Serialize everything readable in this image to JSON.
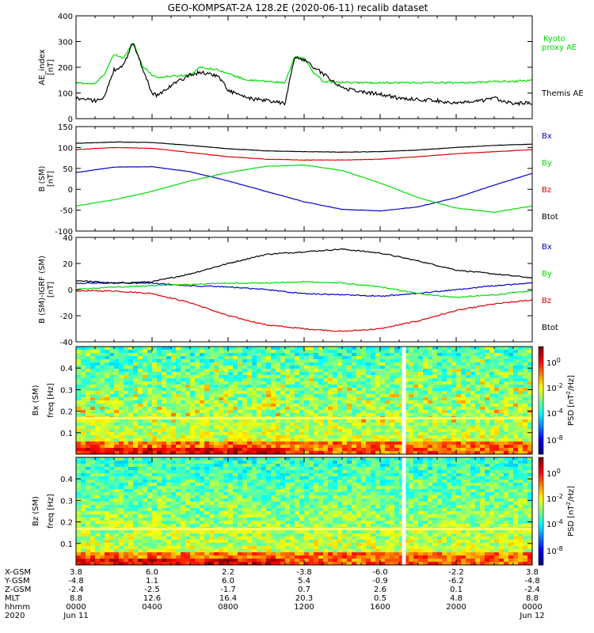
{
  "title": "GEO-KOMPSAT-2A 128.2E (2020-06-11) recalib dataset",
  "colors": {
    "black": "#000000",
    "green": "#00dd00",
    "blue": "#0000cc",
    "red": "#dd0000"
  },
  "chart_data": [
    {
      "type": "line",
      "panel": "ae",
      "ylabel": "AE_index",
      "yunit": "[nT]",
      "ylim": [
        0,
        400
      ],
      "yticks": [
        "0",
        "100",
        "200",
        "300",
        "400"
      ],
      "x_hours": [
        0,
        1,
        1.5,
        2,
        2.5,
        3,
        3.5,
        4,
        4.3,
        5,
        6,
        6.5,
        7,
        7.5,
        8,
        9,
        10,
        11,
        11.5,
        12,
        12.5,
        13,
        14,
        15,
        16,
        17,
        18,
        19,
        20,
        21,
        22,
        23,
        24
      ],
      "series": [
        {
          "name": "Kyoto proxy AE",
          "color": "#00dd00",
          "values": [
            140,
            135,
            175,
            250,
            235,
            295,
            205,
            170,
            160,
            165,
            170,
            200,
            195,
            190,
            175,
            150,
            145,
            140,
            240,
            235,
            180,
            145,
            140,
            140,
            140,
            140,
            140,
            140,
            140,
            140,
            145,
            145,
            150
          ]
        },
        {
          "name": "Themis AE",
          "color": "#000000",
          "values": [
            80,
            70,
            85,
            190,
            205,
            300,
            195,
            100,
            90,
            130,
            170,
            180,
            175,
            165,
            110,
            80,
            70,
            60,
            240,
            230,
            200,
            175,
            120,
            105,
            95,
            80,
            75,
            70,
            60,
            65,
            80,
            60,
            60
          ]
        }
      ],
      "legend": [
        {
          "text": "Kyoto",
          "color": "#00dd00"
        },
        {
          "text": "proxy AE",
          "color": "#00dd00"
        },
        {
          "text": "Themis AE",
          "color": "#000000"
        }
      ]
    },
    {
      "type": "line",
      "panel": "bsm",
      "ylabel": "B (SM)",
      "yunit": "[nT]",
      "ylim": [
        -100,
        150
      ],
      "yticks": [
        "-100",
        "-50",
        "0",
        "50",
        "100",
        "150"
      ],
      "x_hours": [
        0,
        2,
        4,
        6,
        8,
        10,
        12,
        14,
        16,
        18,
        20,
        22,
        24
      ],
      "series": [
        {
          "name": "Bx",
          "color": "#0000cc",
          "values": [
            40,
            53,
            54,
            42,
            20,
            -5,
            -30,
            -48,
            -52,
            -42,
            -20,
            10,
            38
          ]
        },
        {
          "name": "By",
          "color": "#00dd00",
          "values": [
            -40,
            -25,
            -5,
            20,
            40,
            55,
            58,
            45,
            15,
            -20,
            -45,
            -55,
            -40
          ]
        },
        {
          "name": "Bz",
          "color": "#dd0000",
          "values": [
            95,
            100,
            98,
            88,
            78,
            72,
            70,
            70,
            72,
            78,
            85,
            90,
            95
          ]
        },
        {
          "name": "Btot",
          "color": "#000000",
          "values": [
            110,
            113,
            112,
            105,
            97,
            92,
            90,
            89,
            90,
            94,
            100,
            105,
            108
          ]
        }
      ],
      "legend": [
        {
          "text": "Bx",
          "color": "#0000cc"
        },
        {
          "text": "By",
          "color": "#00dd00"
        },
        {
          "text": "Bz",
          "color": "#dd0000"
        },
        {
          "text": "Btot",
          "color": "#000000"
        }
      ]
    },
    {
      "type": "line",
      "panel": "bigrf",
      "ylabel": "B (SM)-IGRF (SM)",
      "yunit": "[nT]",
      "ylim": [
        -40,
        40
      ],
      "yticks": [
        "-40",
        "-20",
        "0",
        "20",
        "40"
      ],
      "x_hours": [
        0,
        2,
        4,
        6,
        8,
        10,
        12,
        14,
        16,
        18,
        20,
        22,
        24
      ],
      "series": [
        {
          "name": "Bx",
          "color": "#0000cc",
          "values": [
            5,
            5,
            5,
            3,
            2,
            0,
            -3,
            -4,
            -5,
            -3,
            0,
            3,
            5
          ]
        },
        {
          "name": "By",
          "color": "#00dd00",
          "values": [
            0,
            2,
            3,
            4,
            5,
            5,
            6,
            5,
            2,
            -3,
            -6,
            -4,
            -1
          ]
        },
        {
          "name": "Bz",
          "color": "#dd0000",
          "values": [
            -1,
            -1,
            -3,
            -10,
            -20,
            -27,
            -30,
            -32,
            -30,
            -24,
            -16,
            -11,
            -8
          ]
        },
        {
          "name": "Btot",
          "color": "#000000",
          "values": [
            7,
            5,
            6,
            12,
            20,
            27,
            29,
            31,
            28,
            22,
            15,
            12,
            9
          ]
        }
      ],
      "legend": [
        {
          "text": "Bx",
          "color": "#0000cc"
        },
        {
          "text": "By",
          "color": "#00dd00"
        },
        {
          "text": "Bz",
          "color": "#dd0000"
        },
        {
          "text": "Btot",
          "color": "#000000"
        }
      ]
    },
    {
      "type": "heatmap",
      "panel": "spec_bx",
      "ylabel": "Bx (SM)",
      "yunit": "freq [Hz]",
      "ylim": [
        0,
        0.5
      ],
      "yticks": [
        "0.1",
        "0.2",
        "0.3",
        "0.4"
      ],
      "colorbar_label": "PSD [nT",
      "colorbar_label_sup": "2",
      "colorbar_label_end": "/Hz]",
      "colorbar_ticks": [
        {
          "b": "10",
          "e": "0"
        },
        {
          "b": "10",
          "e": "-2"
        },
        {
          "b": "10",
          "e": "-4"
        },
        {
          "b": "10",
          "e": "-8"
        }
      ],
      "line_freq_hz": 0.167,
      "gap_hours": [
        17.15,
        17.35
      ]
    },
    {
      "type": "heatmap",
      "panel": "spec_bz",
      "ylabel": "Bz (SM)",
      "yunit": "freq [Hz]",
      "ylim": [
        0,
        0.5
      ],
      "yticks": [
        "0.1",
        "0.2",
        "0.3",
        "0.4"
      ],
      "colorbar_label": "PSD [nT",
      "colorbar_label_sup": "2",
      "colorbar_label_end": "/Hz]",
      "colorbar_ticks": [
        {
          "b": "10",
          "e": "0"
        },
        {
          "b": "10",
          "e": "-2"
        },
        {
          "b": "10",
          "e": "-4"
        },
        {
          "b": "10",
          "e": "-8"
        }
      ],
      "line_freq_hz": 0.167,
      "gap_hours": [
        17.15,
        17.35
      ]
    }
  ],
  "footer": {
    "labels": [
      "X-GSM",
      "Y-GSM",
      "Z-GSM",
      "MLT",
      "hhmm",
      "2020"
    ],
    "columns": [
      [
        "3.8",
        "-4.8",
        "-2.4",
        "8.8",
        "0000",
        "Jun 11"
      ],
      [
        "6.0",
        "1.1",
        "-2.5",
        "12.6",
        "0400",
        ""
      ],
      [
        "2.2",
        "6.0",
        "-1.7",
        "16.4",
        "0800",
        ""
      ],
      [
        "-3.8",
        "5.4",
        "0.7",
        "20.3",
        "1200",
        ""
      ],
      [
        "-6.0",
        "-0.9",
        "2.6",
        "0.5",
        "1600",
        ""
      ],
      [
        "-2.2",
        "-6.2",
        "0.1",
        "4.8",
        "2000",
        ""
      ],
      [
        "3.8",
        "-4.8",
        "-2.4",
        "8.8",
        "0000",
        "Jun 12"
      ]
    ]
  }
}
